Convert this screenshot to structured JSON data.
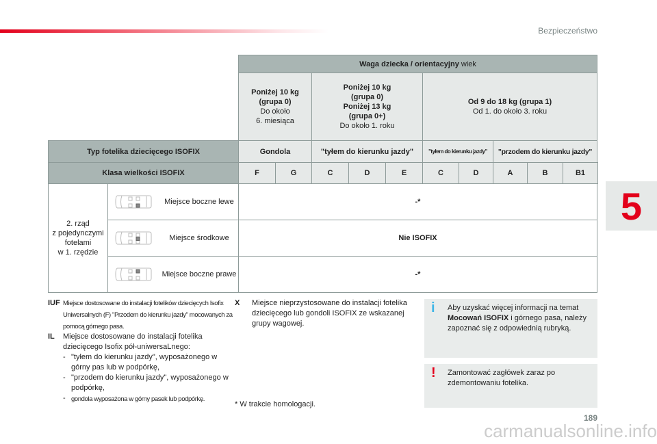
{
  "header": {
    "section": "Bezpieczeństwo"
  },
  "side_tab": "5",
  "table": {
    "weight_header_bold": "Waga dziecka / orientacyjny",
    "weight_header_normal": "wiek",
    "groups": [
      {
        "bold": [
          "Poniżej 10 kg",
          "(grupa 0)"
        ],
        "normal": [
          "Do około",
          "6. miesiąca"
        ]
      },
      {
        "bold": [
          "Poniżej 10 kg",
          "(grupa 0)",
          "Poniżej 13 kg",
          "(grupa 0+)"
        ],
        "normal": [
          "Do około 1. roku"
        ]
      },
      {
        "bold": [
          "Od 9 do 18 kg (grupa 1)"
        ],
        "normal": [
          "Od 1. do około 3. roku"
        ]
      }
    ],
    "type_label": "Typ fotelika dziecięcego ISOFIX",
    "types": [
      "Gondola",
      "\"tyłem do kierunku jazdy\"",
      "\"tyłem do kierunku jazdy\"",
      "\"przodem do kierunku jazdy\""
    ],
    "class_label": "Klasa wielkości ISOFIX",
    "classes": [
      "F",
      "G",
      "C",
      "D",
      "E",
      "C",
      "D",
      "A",
      "B",
      "B1"
    ],
    "row_group": [
      "2. rząd",
      "z pojedynczymi",
      "fotelami",
      "w 1. rzędzie"
    ],
    "rows": [
      {
        "seat": "Miejsce boczne lewe",
        "value": "-*",
        "icon": "car-seat-left-icon"
      },
      {
        "seat": "Miejsce środkowe",
        "value": "Nie ISOFIX",
        "icon": "car-seat-middle-icon"
      },
      {
        "seat": "Miejsce boczne prawe",
        "value": "-*",
        "icon": "car-seat-right-icon"
      }
    ]
  },
  "legend": {
    "iuf_code": "IUF",
    "iuf_text": "Miejsce dostosowane do instalacji fotelików dziecięcych Isofix Uniwersalnych (F) \"Przodem do kierunku jazdy\" mocowanych za pomocą górnego pasa.",
    "il_code": "IL",
    "il_text": "Miejsce dostosowane do instalacji fotelika dziecięcego Isofix pół-uniwersaLnego:",
    "il_items": [
      "\"tyłem do kierunku jazdy\", wyposażonego w górny pas lub w podpórkę,",
      "\"przodem do kierunku jazdy\", wyposażonego w podpórkę,",
      "gondola wyposażona w górny pasek lub podpórkę."
    ],
    "x_code": "X",
    "x_text": "Miejsce nieprzystosowane do instalacji fotelika dziecięcego lub gondoli ISOFIX ze wskazanej grupy wagowej.",
    "footnote": "* W trakcie homologacji."
  },
  "info_box": {
    "icon": "info-icon",
    "text_before": "Aby uzyskać więcej informacji na temat",
    "bold": "Mocowań ISOFIX",
    "text_after": "i górnego pasa, należy zapoznać się z odpowiednią rubryką.",
    "color": "#3fb6e6"
  },
  "warning_box": {
    "icon": "warning-icon",
    "text": "Zamontować zagłówek zaraz po zdemontowaniu fotelika.",
    "color": "#e3001b"
  },
  "page_number": "189",
  "watermark": "carmanualsonline.info"
}
